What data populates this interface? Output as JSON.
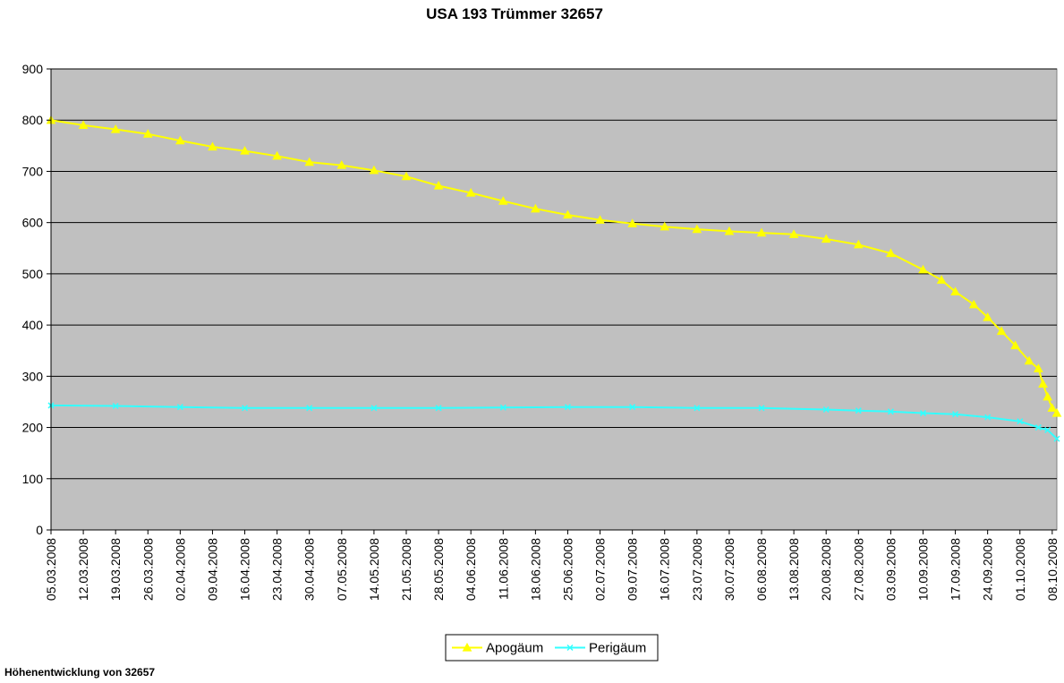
{
  "caption": "Höhenentwicklung von 32657",
  "colors": {
    "plot_background": "#c0c0c0",
    "apogee": "#ffff00",
    "perigee": "#33ffff",
    "gridline": "#000000"
  },
  "chart_data": {
    "type": "line",
    "title": "USA 193 Trümmer 32657",
    "xlabel": "",
    "ylabel": "",
    "ylim": [
      0,
      900
    ],
    "ytick_values": [
      0,
      100,
      200,
      300,
      400,
      500,
      600,
      700,
      800,
      900
    ],
    "ytick_labels": [
      "0",
      "100",
      "200",
      "300",
      "400",
      "500",
      "600",
      "700",
      "800",
      "900"
    ],
    "xlim": [
      "05.03.2008",
      "09.10.2008"
    ],
    "xtick_labels": [
      "05.03.2008",
      "12.03.2008",
      "19.03.2008",
      "26.03.2008",
      "02.04.2008",
      "09.04.2008",
      "16.04.2008",
      "23.04.2008",
      "30.04.2008",
      "07.05.2008",
      "14.05.2008",
      "21.05.2008",
      "28.05.2008",
      "04.06.2008",
      "11.06.2008",
      "18.06.2008",
      "25.06.2008",
      "02.07.2008",
      "09.07.2008",
      "16.07.2008",
      "23.07.2008",
      "30.07.2008",
      "06.08.2008",
      "13.08.2008",
      "20.08.2008",
      "27.08.2008",
      "03.09.2008",
      "10.09.2008",
      "17.09.2008",
      "24.09.2008",
      "01.10.2008",
      "08.10.2008"
    ],
    "grid": true,
    "legend_position": "bottom-center",
    "series": [
      {
        "name": "Apogäum",
        "marker": "triangle",
        "points": [
          [
            "05.03.2008",
            800
          ],
          [
            "12.03.2008",
            790
          ],
          [
            "19.03.2008",
            782
          ],
          [
            "26.03.2008",
            773
          ],
          [
            "02.04.2008",
            760
          ],
          [
            "09.04.2008",
            748
          ],
          [
            "16.04.2008",
            740
          ],
          [
            "23.04.2008",
            730
          ],
          [
            "30.04.2008",
            718
          ],
          [
            "07.05.2008",
            712
          ],
          [
            "14.05.2008",
            702
          ],
          [
            "21.05.2008",
            690
          ],
          [
            "28.05.2008",
            672
          ],
          [
            "04.06.2008",
            658
          ],
          [
            "11.06.2008",
            642
          ],
          [
            "18.06.2008",
            627
          ],
          [
            "25.06.2008",
            615
          ],
          [
            "02.07.2008",
            605
          ],
          [
            "09.07.2008",
            598
          ],
          [
            "16.07.2008",
            592
          ],
          [
            "23.07.2008",
            587
          ],
          [
            "30.07.2008",
            583
          ],
          [
            "06.08.2008",
            580
          ],
          [
            "13.08.2008",
            577
          ],
          [
            "20.08.2008",
            568
          ],
          [
            "27.08.2008",
            557
          ],
          [
            "03.09.2008",
            540
          ],
          [
            "10.09.2008",
            508
          ],
          [
            "14.09.2008",
            488
          ],
          [
            "17.09.2008",
            465
          ],
          [
            "21.09.2008",
            440
          ],
          [
            "24.09.2008",
            415
          ],
          [
            "27.09.2008",
            388
          ],
          [
            "30.09.2008",
            360
          ],
          [
            "03.10.2008",
            330
          ],
          [
            "05.10.2008",
            315
          ],
          [
            "06.10.2008",
            285
          ],
          [
            "07.10.2008",
            260
          ],
          [
            "08.10.2008",
            238
          ],
          [
            "09.10.2008",
            228
          ]
        ]
      },
      {
        "name": "Perigäum",
        "marker": "x",
        "points": [
          [
            "05.03.2008",
            243
          ],
          [
            "19.03.2008",
            242
          ],
          [
            "02.04.2008",
            240
          ],
          [
            "16.04.2008",
            238
          ],
          [
            "30.04.2008",
            238
          ],
          [
            "14.05.2008",
            238
          ],
          [
            "28.05.2008",
            238
          ],
          [
            "11.06.2008",
            239
          ],
          [
            "25.06.2008",
            240
          ],
          [
            "09.07.2008",
            240
          ],
          [
            "23.07.2008",
            238
          ],
          [
            "06.08.2008",
            238
          ],
          [
            "20.08.2008",
            235
          ],
          [
            "27.08.2008",
            233
          ],
          [
            "03.09.2008",
            231
          ],
          [
            "10.09.2008",
            228
          ],
          [
            "17.09.2008",
            226
          ],
          [
            "24.09.2008",
            220
          ],
          [
            "01.10.2008",
            212
          ],
          [
            "05.10.2008",
            200
          ],
          [
            "07.10.2008",
            195
          ],
          [
            "09.10.2008",
            178
          ]
        ]
      }
    ]
  }
}
